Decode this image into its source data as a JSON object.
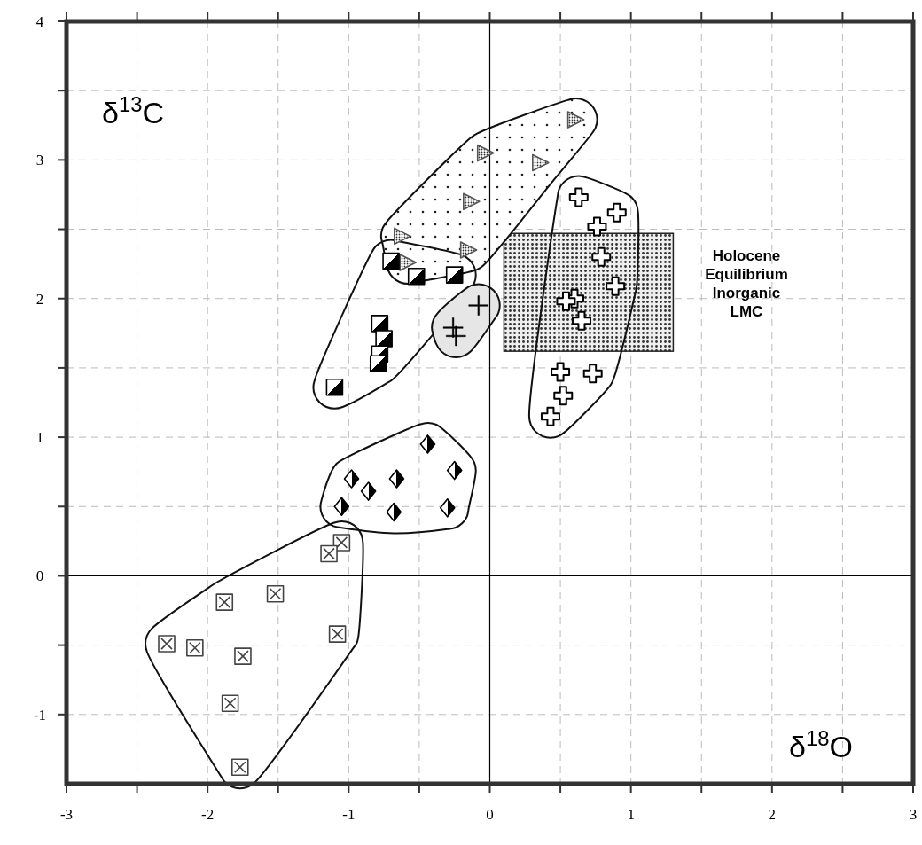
{
  "chart_data": {
    "type": "scatter",
    "xlabel": "δ$^{18}$O",
    "ylabel": "δ$^{13}$C",
    "xlim": [
      -3,
      3
    ],
    "ylim": [
      -1.5,
      4
    ],
    "xticks": [
      -3,
      {
        "value": -2.5,
        "label": null
      },
      -2,
      {
        "value": -1.5,
        "label": null
      },
      -1,
      {
        "value": -0.5,
        "label": null
      },
      0,
      {
        "value": 0.5,
        "label": null
      },
      1,
      {
        "value": 1.5,
        "label": null
      },
      2,
      {
        "value": 2.5,
        "label": null
      },
      3
    ],
    "yticks": [
      -1,
      {
        "value": -0.5,
        "label": null
      },
      0,
      {
        "value": 0.5,
        "label": null
      },
      1,
      {
        "value": 1.5,
        "label": null
      },
      2,
      {
        "value": 2.5,
        "label": null
      },
      3,
      {
        "value": 3.5,
        "label": null
      },
      4
    ],
    "grid": true,
    "annotations": [
      "Holocene Equilibrium Inorganic LMC"
    ],
    "series": [
      {
        "color": "#555555",
        "x": [
          0.61,
          -0.03,
          0.36,
          -0.13,
          -0.62,
          -0.15,
          -0.58
        ],
        "values": [
          3.29,
          3.05,
          2.98,
          2.7,
          2.45,
          2.35,
          2.26
        ]
      },
      {
        "color": "#000000",
        "x": [
          -0.7,
          -0.52,
          -0.25,
          -0.78,
          -0.75,
          -0.78,
          -0.79,
          -1.1
        ],
        "values": [
          2.27,
          2.16,
          2.17,
          1.82,
          1.71,
          1.6,
          1.53,
          1.36
        ]
      },
      {
        "color": "#000000",
        "x": [
          -0.08,
          -0.26,
          -0.24
        ],
        "values": [
          1.95,
          1.79,
          1.73
        ]
      },
      {
        "color": "#000000",
        "x": [
          0.63,
          0.9,
          0.76,
          0.79,
          0.89,
          0.6,
          0.54,
          0.65,
          0.5,
          0.73,
          0.52,
          0.43
        ],
        "values": [
          2.73,
          2.62,
          2.52,
          2.3,
          2.09,
          2.0,
          1.98,
          1.84,
          1.47,
          1.46,
          1.3,
          1.15
        ]
      },
      {
        "color": "#000000",
        "x": [
          -0.44,
          -0.25,
          -0.66,
          -0.98,
          -0.86,
          -0.68,
          -0.3,
          -1.05
        ],
        "values": [
          0.95,
          0.76,
          0.7,
          0.7,
          0.61,
          0.46,
          0.49,
          0.5
        ]
      },
      {
        "color": "#444444",
        "x": [
          -1.05,
          -1.14,
          -1.52,
          -1.88,
          -2.29,
          -2.09,
          -1.75,
          -1.08,
          -1.84,
          -1.77
        ],
        "values": [
          0.24,
          0.16,
          -0.13,
          -0.19,
          -0.49,
          -0.52,
          -0.58,
          -0.42,
          -0.92,
          -1.38
        ]
      }
    ]
  }
}
